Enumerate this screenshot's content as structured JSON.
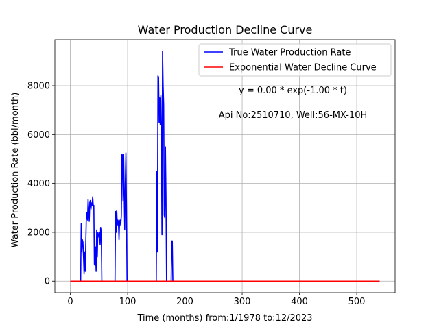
{
  "chart_data": {
    "type": "line",
    "title": "Water Production Decline Curve",
    "xlabel": "Time (months) from:1/1978 to:12/2023",
    "ylabel": "Water Production Rate (bbl/month)",
    "xlim": [
      -27,
      567
    ],
    "ylim": [
      -470,
      9880
    ],
    "xticks": [
      0,
      100,
      200,
      300,
      400,
      500
    ],
    "yticks": [
      0,
      2000,
      4000,
      6000,
      8000
    ],
    "grid": true,
    "legend_position": "top-right",
    "annotations": [
      "y = 0.00 * exp(-1.00 * t)",
      "Api No:2510710, Well:56-MX-10H"
    ],
    "series": [
      {
        "name": "True Water Production Rate",
        "color": "#0000ff",
        "points": [
          [
            0,
            0
          ],
          [
            18,
            0
          ],
          [
            19,
            2350
          ],
          [
            20,
            1200
          ],
          [
            21,
            1700
          ],
          [
            22,
            1600
          ],
          [
            23,
            1000
          ],
          [
            24,
            300
          ],
          [
            25,
            1200
          ],
          [
            26,
            400
          ],
          [
            27,
            1600
          ],
          [
            28,
            2700
          ],
          [
            29,
            2800
          ],
          [
            30,
            2500
          ],
          [
            31,
            3350
          ],
          [
            32,
            2900
          ],
          [
            33,
            2450
          ],
          [
            34,
            3250
          ],
          [
            35,
            3300
          ],
          [
            36,
            2950
          ],
          [
            37,
            3200
          ],
          [
            38,
            3100
          ],
          [
            39,
            3450
          ],
          [
            40,
            3100
          ],
          [
            41,
            3100
          ],
          [
            42,
            700
          ],
          [
            43,
            650
          ],
          [
            44,
            1400
          ],
          [
            45,
            400
          ],
          [
            46,
            2100
          ],
          [
            47,
            1000
          ],
          [
            48,
            2000
          ],
          [
            49,
            1900
          ],
          [
            50,
            1800
          ],
          [
            51,
            2000
          ],
          [
            52,
            1500
          ],
          [
            53,
            2200
          ],
          [
            54,
            2000
          ],
          [
            55,
            0
          ],
          [
            78,
            0
          ],
          [
            79,
            2850
          ],
          [
            80,
            2000
          ],
          [
            81,
            2900
          ],
          [
            82,
            2300
          ],
          [
            83,
            2500
          ],
          [
            84,
            2400
          ],
          [
            85,
            1700
          ],
          [
            86,
            2450
          ],
          [
            87,
            2500
          ],
          [
            88,
            2300
          ],
          [
            89,
            2700
          ],
          [
            90,
            5200
          ],
          [
            91,
            5150
          ],
          [
            92,
            3300
          ],
          [
            93,
            5200
          ],
          [
            94,
            3600
          ],
          [
            95,
            2100
          ],
          [
            96,
            4000
          ],
          [
            97,
            5250
          ],
          [
            98,
            3000
          ],
          [
            99,
            0
          ],
          [
            150,
            0
          ],
          [
            151,
            4500
          ],
          [
            152,
            1200
          ],
          [
            153,
            8400
          ],
          [
            154,
            8350
          ],
          [
            155,
            6500
          ],
          [
            156,
            7500
          ],
          [
            157,
            6400
          ],
          [
            158,
            7600
          ],
          [
            159,
            6000
          ],
          [
            160,
            1900
          ],
          [
            161,
            9400
          ],
          [
            162,
            8000
          ],
          [
            163,
            7200
          ],
          [
            164,
            2700
          ],
          [
            165,
            2600
          ],
          [
            166,
            5500
          ],
          [
            167,
            3500
          ],
          [
            168,
            0
          ],
          [
            176,
            0
          ],
          [
            177,
            1650
          ],
          [
            178,
            1650
          ],
          [
            179,
            0
          ],
          [
            540,
            0
          ]
        ]
      },
      {
        "name": "Exponential Water Decline Curve",
        "color": "#ff0000",
        "points": [
          [
            0,
            0
          ],
          [
            540,
            0
          ]
        ]
      }
    ]
  }
}
